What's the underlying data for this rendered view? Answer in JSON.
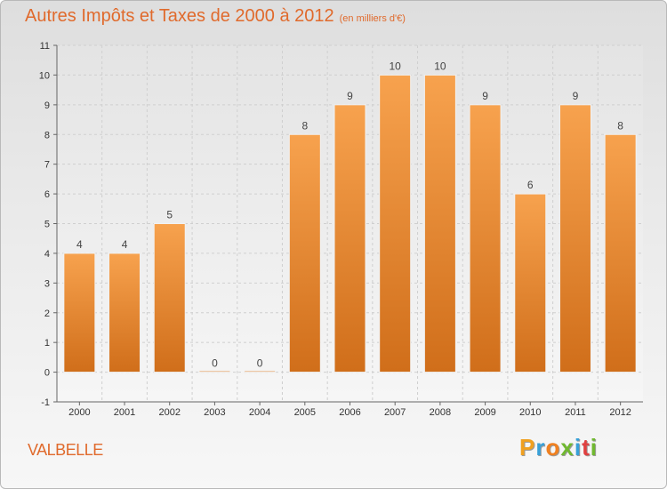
{
  "title": "Autres Impôts et Taxes de 2000 à 2012",
  "subtitle": "(en milliers d'€)",
  "footer_label": "VALBELLE",
  "logo": {
    "letters": [
      "P",
      "r",
      "o",
      "x",
      "i",
      "t",
      "i"
    ],
    "colors": [
      "#f0a020",
      "#38a0d8",
      "#f08020",
      "#70b830",
      "#38a0d8",
      "#e04040",
      "#70b830"
    ]
  },
  "colors": {
    "accent": "#e06a2c",
    "bar_top": "#f7a24e",
    "bar_bottom": "#d06e1a"
  },
  "chart_data": {
    "type": "bar",
    "categories": [
      "2000",
      "2001",
      "2002",
      "2003",
      "2004",
      "2005",
      "2006",
      "2007",
      "2008",
      "2009",
      "2010",
      "2011",
      "2012"
    ],
    "values": [
      4,
      4,
      5,
      0,
      0,
      8,
      9,
      10,
      10,
      9,
      6,
      9,
      8
    ],
    "data_labels": [
      "4",
      "4",
      "5",
      "0",
      "0",
      "8",
      "9",
      "10",
      "10",
      "9",
      "6",
      "9",
      "8"
    ],
    "ylim": [
      -1,
      11
    ],
    "yticks": [
      "-1",
      "0",
      "1",
      "2",
      "3",
      "4",
      "5",
      "6",
      "7",
      "8",
      "9",
      "10",
      "11"
    ],
    "grid": true,
    "xlabel": "",
    "ylabel": ""
  }
}
